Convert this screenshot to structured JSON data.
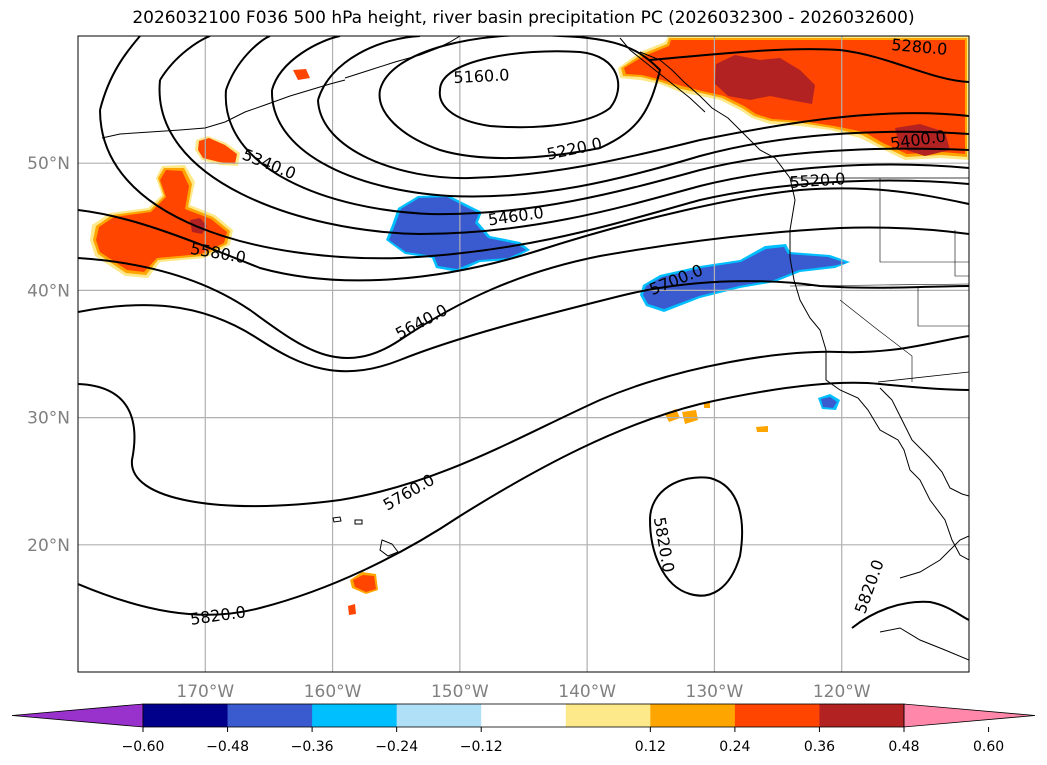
{
  "title": "2026032100 F036 500 hPa height, river basin precipitation PC (2026032300 - 2026032600)",
  "colors": {
    "ocean": "#ffffff",
    "grid": "#b0b0b0",
    "contour": "#000000",
    "coast": "#000000"
  },
  "chart_data": {
    "type": "map",
    "region": "North Pacific / western North America",
    "lon_range": [
      -180,
      -110
    ],
    "lat_range": [
      10,
      60
    ],
    "lon_ticks": [
      {
        "value": -170,
        "label": "170°W"
      },
      {
        "value": -160,
        "label": "160°W"
      },
      {
        "value": -150,
        "label": "150°W"
      },
      {
        "value": -140,
        "label": "140°W"
      },
      {
        "value": -130,
        "label": "130°W"
      },
      {
        "value": -120,
        "label": "120°W"
      }
    ],
    "lat_ticks": [
      {
        "value": 50,
        "label": "50°N"
      },
      {
        "value": 40,
        "label": "40°N"
      },
      {
        "value": 30,
        "label": "30°N"
      },
      {
        "value": 20,
        "label": "20°N"
      }
    ],
    "contour_labels": [
      {
        "value": "5160.0",
        "lon": -148.3,
        "lat": 56.8
      },
      {
        "value": "5220.0",
        "lon": -141.0,
        "lat": 51.1
      },
      {
        "value": "5280.0",
        "lon": -113.9,
        "lat": 59.1
      },
      {
        "value": "5340.0",
        "lon": -165.0,
        "lat": 49.9
      },
      {
        "value": "5400.0",
        "lon": -114.0,
        "lat": 51.8
      },
      {
        "value": "5460.0",
        "lon": -145.6,
        "lat": 45.8
      },
      {
        "value": "5520.0",
        "lon": -121.9,
        "lat": 48.6
      },
      {
        "value": "5580.0",
        "lon": -169.0,
        "lat": 42.9
      },
      {
        "value": "5640.0",
        "lon": -153.0,
        "lat": 37.5
      },
      {
        "value": "5700.0",
        "lon": -133.0,
        "lat": 40.8
      },
      {
        "value": "5760.0",
        "lon": -154.0,
        "lat": 24.1
      },
      {
        "value": "5820.0",
        "lon": -169.0,
        "lat": 14.4
      },
      {
        "value": "5820.0",
        "lon": -134.0,
        "lat": 20.0
      },
      {
        "value": "5820.0",
        "lon": -117.8,
        "lat": 16.7
      }
    ],
    "colorbar": {
      "ticks": [
        "−0.60",
        "−0.48",
        "−0.36",
        "−0.24",
        "−0.12",
        "0.12",
        "0.24",
        "0.36",
        "0.48",
        "0.60"
      ],
      "bins": [
        {
          "lo": -0.72,
          "hi": -0.6,
          "color": "#9932cc"
        },
        {
          "lo": -0.6,
          "hi": -0.48,
          "color": "#00008b"
        },
        {
          "lo": -0.48,
          "hi": -0.36,
          "color": "#3a5bcf"
        },
        {
          "lo": -0.36,
          "hi": -0.24,
          "color": "#00bfff"
        },
        {
          "lo": -0.24,
          "hi": -0.12,
          "color": "#b0e0f8"
        },
        {
          "lo": -0.12,
          "hi": 0.12,
          "color": "#ffffff"
        },
        {
          "lo": 0.12,
          "hi": 0.24,
          "color": "#fde98a"
        },
        {
          "lo": 0.24,
          "hi": 0.36,
          "color": "#ffa500"
        },
        {
          "lo": 0.36,
          "hi": 0.48,
          "color": "#ff4500"
        },
        {
          "lo": 0.48,
          "hi": 0.6,
          "color": "#b22222"
        },
        {
          "lo": 0.6,
          "hi": 0.72,
          "color": "#ff88aa"
        }
      ]
    },
    "precip_regions": [
      {
        "name": "western-pacific-positive",
        "level": "0.36-0.48",
        "center_lon": -175,
        "center_lat": 44
      },
      {
        "name": "aleutian-positive",
        "level": "0.36-0.48",
        "center_lon": -171,
        "center_lat": 50
      },
      {
        "name": "gulf-of-alaska-negative",
        "level": "-0.48--0.36",
        "center_lon": -149,
        "center_lat": 45
      },
      {
        "name": "california-offshore-negative",
        "level": "-0.48--0.36",
        "center_lon": -129,
        "center_lat": 40
      },
      {
        "name": "british-columbia-positive",
        "level": "0.48-0.60",
        "center_lon": -124,
        "center_lat": 57
      },
      {
        "name": "interior-canada-positive",
        "level": "0.48-0.60",
        "center_lon": -112,
        "center_lat": 52
      },
      {
        "name": "hawaii-positive",
        "level": "0.36-0.48",
        "center_lon": -156,
        "center_lat": 17
      }
    ]
  }
}
